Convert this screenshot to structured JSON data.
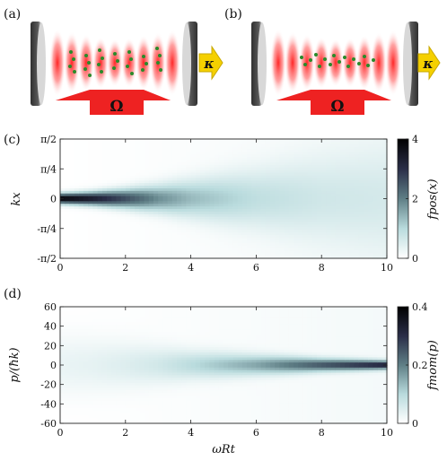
{
  "panels": {
    "a": "(a)",
    "b": "(b)",
    "c": "(c)",
    "d": "(d)"
  },
  "schematic": {
    "pump_label": "Ω",
    "decay_label": "κ",
    "colors": {
      "pump_arrow": "#ee2222",
      "decay_arrow": "#f5d000",
      "atoms": "#2a8a2a",
      "standing_wave": "#ff2222",
      "mirror": "#4a4a4a"
    }
  },
  "chart_data": [
    {
      "type": "heatmap",
      "panel": "(c)",
      "xlabel": "ωRt",
      "ylabel": "kx",
      "colorbar_label": "fpos(x)",
      "xlim": [
        0,
        10
      ],
      "ylim": [
        -1.5708,
        1.5708
      ],
      "xticks": [
        "0",
        "2",
        "4",
        "6",
        "8",
        "10"
      ],
      "yticks": [
        "-π/2",
        "-π/4",
        "0",
        "π/4",
        "π/2"
      ],
      "clim": [
        0,
        4
      ],
      "cticks": [
        "0",
        "2",
        "4"
      ],
      "colormap": [
        "#ffffff",
        "#b9dbdd",
        "#5f7f86",
        "#2a2e48",
        "#000000"
      ],
      "description_points": {
        "t": [
          0,
          1,
          2,
          3,
          4,
          6,
          8,
          10
        ],
        "peak_value": [
          4.0,
          3.4,
          2.6,
          1.8,
          1.3,
          0.8,
          0.55,
          0.45
        ],
        "width_kx": [
          0.09,
          0.12,
          0.17,
          0.24,
          0.33,
          0.52,
          0.75,
          0.95
        ]
      }
    },
    {
      "type": "heatmap",
      "panel": "(d)",
      "xlabel": "ωRt",
      "ylabel": "p/(ħk)",
      "colorbar_label": "fmom(p)",
      "xlim": [
        0,
        10
      ],
      "ylim": [
        -60,
        60
      ],
      "xticks": [
        "0",
        "2",
        "4",
        "6",
        "8",
        "10"
      ],
      "yticks": [
        "-60",
        "-40",
        "-20",
        "0",
        "20",
        "40",
        "60"
      ],
      "clim": [
        0,
        0.4
      ],
      "cticks": [
        "0",
        "0.2",
        "0.4"
      ],
      "colormap": [
        "#ffffff",
        "#b9dbdd",
        "#5f7f86",
        "#2a2e48",
        "#000000"
      ],
      "description_points": {
        "t": [
          0,
          1,
          2,
          3,
          4,
          6,
          8,
          10
        ],
        "peak_value": [
          0.03,
          0.035,
          0.045,
          0.06,
          0.09,
          0.15,
          0.24,
          0.32
        ],
        "width_p": [
          22,
          19,
          16,
          13,
          10,
          7,
          4.5,
          3
        ]
      }
    }
  ]
}
